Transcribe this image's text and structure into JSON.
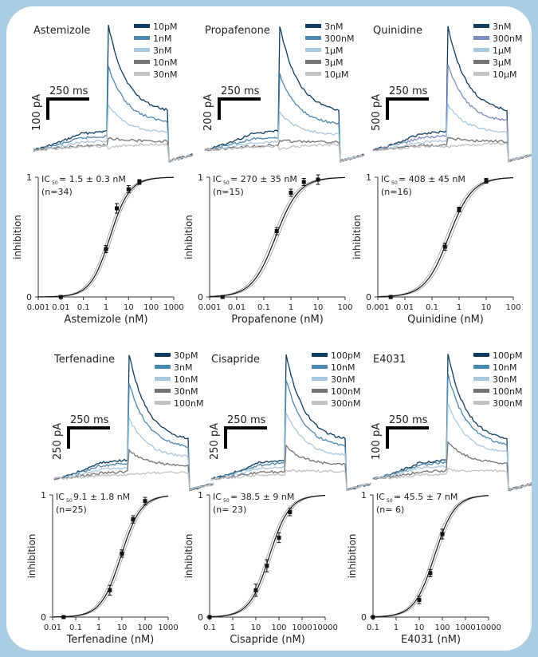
{
  "chart_data": [
    {
      "type": "line",
      "panel": "trace",
      "title": "Astemizole",
      "series": [
        {
          "name": "10pM",
          "color": "#0d3d60",
          "peak": 1.0
        },
        {
          "name": "1nM",
          "color": "#4d88b0",
          "peak": 0.68
        },
        {
          "name": "3nM",
          "color": "#a8c8e0",
          "peak": 0.38
        },
        {
          "name": "10nM",
          "color": "#737373",
          "peak": 0.12
        },
        {
          "name": "30nM",
          "color": "#c2c2c2",
          "peak": 0.04
        }
      ],
      "scalebar": {
        "time_label": "250 ms",
        "current_label": "100 pA"
      }
    },
    {
      "type": "line",
      "panel": "trace",
      "title": "Propafenone",
      "series": [
        {
          "name": "3nM",
          "color": "#0d3d60",
          "peak": 1.0
        },
        {
          "name": "300nM",
          "color": "#4d88b0",
          "peak": 0.62
        },
        {
          "name": "1μM",
          "color": "#a8c8e0",
          "peak": 0.32
        },
        {
          "name": "3μM",
          "color": "#737373",
          "peak": 0.1
        },
        {
          "name": "10μM",
          "color": "#c2c2c2",
          "peak": 0.03
        }
      ],
      "scalebar": {
        "time_label": "250 ms",
        "current_label": "200 pA"
      }
    },
    {
      "type": "line",
      "panel": "trace",
      "title": "Quinidine",
      "series": [
        {
          "name": "3nM",
          "color": "#0d3d60",
          "peak": 1.0
        },
        {
          "name": "300nM",
          "color": "#7b8fc4",
          "peak": 0.7
        },
        {
          "name": "1μM",
          "color": "#a8c8e0",
          "peak": 0.38
        },
        {
          "name": "3μM",
          "color": "#737373",
          "peak": 0.12
        },
        {
          "name": "10μM",
          "color": "#c2c2c2",
          "peak": 0.05
        }
      ],
      "scalebar": {
        "time_label": "250 ms",
        "current_label": "500 pA"
      }
    },
    {
      "type": "scatter",
      "panel": "dose",
      "xlabel": "Astemizole (nM)",
      "ylabel": "inhibition",
      "x_scale": "log",
      "xlim": [
        0.001,
        1000
      ],
      "xticks": [
        "0.001",
        "0.01",
        "0.1",
        "1",
        "10",
        "100",
        "1000"
      ],
      "ylim": [
        0,
        1
      ],
      "yticks": [
        "0",
        "1"
      ],
      "ic50": 1.5,
      "annotation": {
        "ic": "IC",
        "sub": "50",
        "value": " = 1.5 ± 0.3 nM",
        "n": "(n=34)"
      },
      "points": [
        {
          "x": 0.01,
          "y": 0.0,
          "err": 0.01
        },
        {
          "x": 1,
          "y": 0.4,
          "err": 0.03
        },
        {
          "x": 3,
          "y": 0.74,
          "err": 0.04
        },
        {
          "x": 10,
          "y": 0.9,
          "err": 0.03
        },
        {
          "x": 30,
          "y": 0.96,
          "err": 0.02
        }
      ]
    },
    {
      "type": "scatter",
      "panel": "dose",
      "xlabel": "Propafenone (nM)",
      "ylabel": "inhibition",
      "x_scale": "log",
      "xlim": [
        0.001,
        100
      ],
      "xticks": [
        "0.001",
        "0.01",
        "0.1",
        "1",
        "10",
        "100"
      ],
      "ylim": [
        0,
        1
      ],
      "yticks": [
        "0",
        "1"
      ],
      "ic50": 0.27,
      "annotation": {
        "ic": "IC",
        "sub": "50",
        "value": " = 270 ± 35 nM",
        "n": "(n=15)"
      },
      "points": [
        {
          "x": 0.003,
          "y": 0.0,
          "err": 0.01
        },
        {
          "x": 0.3,
          "y": 0.55,
          "err": 0.03
        },
        {
          "x": 1,
          "y": 0.87,
          "err": 0.03
        },
        {
          "x": 3,
          "y": 0.96,
          "err": 0.03
        },
        {
          "x": 10,
          "y": 0.98,
          "err": 0.04
        }
      ]
    },
    {
      "type": "scatter",
      "panel": "dose",
      "xlabel": "Quinidine (nM)",
      "ylabel": "inhibition",
      "x_scale": "log",
      "xlim": [
        0.001,
        100
      ],
      "xticks": [
        "0.001",
        "0.01",
        "0.1",
        "1",
        "10",
        "100"
      ],
      "ylim": [
        0,
        1
      ],
      "yticks": [
        "0",
        "1"
      ],
      "ic50": 0.41,
      "annotation": {
        "ic": "IC",
        "sub": "50",
        "value": " = 408 ± 45 nM",
        "n": "(n=16)"
      },
      "points": [
        {
          "x": 0.003,
          "y": 0.0,
          "err": 0.01
        },
        {
          "x": 0.3,
          "y": 0.42,
          "err": 0.03
        },
        {
          "x": 1,
          "y": 0.73,
          "err": 0.02
        },
        {
          "x": 10,
          "y": 0.97,
          "err": 0.02
        }
      ]
    },
    {
      "type": "line",
      "panel": "trace",
      "title": "Terfenadine",
      "series": [
        {
          "name": "30pM",
          "color": "#0d3d60",
          "peak": 1.0
        },
        {
          "name": "3nM",
          "color": "#4d88b0",
          "peak": 0.78
        },
        {
          "name": "10nM",
          "color": "#a8c8e0",
          "peak": 0.5
        },
        {
          "name": "30nM",
          "color": "#737373",
          "peak": 0.25
        },
        {
          "name": "100nM",
          "color": "#c2c2c2",
          "peak": 0.06
        }
      ],
      "scalebar": {
        "time_label": "250 ms",
        "current_label": "250 pA"
      }
    },
    {
      "type": "line",
      "panel": "trace",
      "title": "Cisapride",
      "series": [
        {
          "name": "100pM",
          "color": "#0d3d60",
          "peak": 1.0
        },
        {
          "name": "10nM",
          "color": "#4d88b0",
          "peak": 0.8
        },
        {
          "name": "30nM",
          "color": "#a8c8e0",
          "peak": 0.55
        },
        {
          "name": "100nM",
          "color": "#737373",
          "peak": 0.28
        },
        {
          "name": "300nM",
          "color": "#c2c2c2",
          "peak": 0.09
        }
      ],
      "scalebar": {
        "time_label": "250 ms",
        "current_label": "250 pA"
      }
    },
    {
      "type": "line",
      "panel": "trace",
      "title": "E4031",
      "series": [
        {
          "name": "100pM",
          "color": "#0d3d60",
          "peak": 1.0
        },
        {
          "name": "10nM",
          "color": "#4d88b0",
          "peak": 0.85
        },
        {
          "name": "30nM",
          "color": "#a8c8e0",
          "peak": 0.62
        },
        {
          "name": "100nM",
          "color": "#737373",
          "peak": 0.32
        },
        {
          "name": "300nM",
          "color": "#c2c2c2",
          "peak": 0.1
        }
      ],
      "scalebar": {
        "time_label": "250 ms",
        "current_label": "100 pA"
      }
    },
    {
      "type": "scatter",
      "panel": "dose",
      "xlabel": "Terfenadine (nM)",
      "ylabel": "inhibition",
      "x_scale": "log",
      "xlim": [
        0.01,
        1000
      ],
      "xticks": [
        "0.01",
        "0.1",
        "1",
        "10",
        "100",
        "1000"
      ],
      "ylim": [
        0,
        1
      ],
      "yticks": [
        "0",
        "1"
      ],
      "ic50": 9.1,
      "annotation": {
        "ic": "IC",
        "sub": "50",
        "value": " 9.1 ± 1.8 nM",
        "n": "(n=25)"
      },
      "points": [
        {
          "x": 0.03,
          "y": 0.0,
          "err": 0.01
        },
        {
          "x": 3,
          "y": 0.22,
          "err": 0.04
        },
        {
          "x": 10,
          "y": 0.52,
          "err": 0.03
        },
        {
          "x": 30,
          "y": 0.8,
          "err": 0.03
        },
        {
          "x": 100,
          "y": 0.95,
          "err": 0.03
        }
      ]
    },
    {
      "type": "scatter",
      "panel": "dose",
      "xlabel": "Cisapride (nM)",
      "ylabel": "inhibition",
      "x_scale": "log",
      "xlim": [
        0.1,
        10000
      ],
      "xticks": [
        "0.1",
        "1",
        "10",
        "100",
        "1000",
        "10000"
      ],
      "ylim": [
        0,
        1
      ],
      "yticks": [
        "0",
        "1"
      ],
      "ic50": 38.5,
      "annotation": {
        "ic": "IC",
        "sub": "50",
        "value": " = 38.5 ± 9 nM",
        "n": "(n= 23)"
      },
      "points": [
        {
          "x": 0.1,
          "y": 0.0,
          "err": 0.01
        },
        {
          "x": 10,
          "y": 0.22,
          "err": 0.05
        },
        {
          "x": 30,
          "y": 0.42,
          "err": 0.05
        },
        {
          "x": 100,
          "y": 0.65,
          "err": 0.04
        },
        {
          "x": 300,
          "y": 0.86,
          "err": 0.03
        }
      ]
    },
    {
      "type": "scatter",
      "panel": "dose",
      "xlabel": "E4031 (nM)",
      "ylabel": "inhibition",
      "x_scale": "log",
      "xlim": [
        0.1,
        10000
      ],
      "xticks": [
        "0.1",
        "1",
        "10",
        "100",
        "1000",
        "10000"
      ],
      "ylim": [
        0,
        1
      ],
      "yticks": [
        "0",
        "1"
      ],
      "ic50": 45.5,
      "annotation": {
        "ic": "IC",
        "sub": "50",
        "value": " = 45.5 ± 7 nM",
        "n": "(n= 6)"
      },
      "points": [
        {
          "x": 0.1,
          "y": 0.0,
          "err": 0.01
        },
        {
          "x": 10,
          "y": 0.14,
          "err": 0.03
        },
        {
          "x": 30,
          "y": 0.36,
          "err": 0.03
        },
        {
          "x": 100,
          "y": 0.68,
          "err": 0.04
        }
      ]
    }
  ]
}
